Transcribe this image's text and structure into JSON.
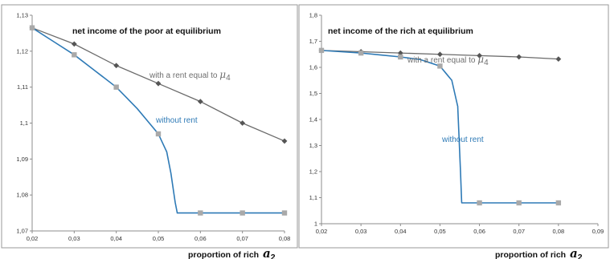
{
  "chart_data": [
    {
      "type": "line",
      "title": "net income of the poor at equilibrium",
      "xlabel": "proportion of rich",
      "xlabel_symbol": "a",
      "xlabel_subscript": "2",
      "x_ticks": [
        "0,02",
        "0,03",
        "0,04",
        "0,05",
        "0,06",
        "0,07",
        "0,08"
      ],
      "y_ticks": [
        "1,07",
        "1,08",
        "1,09",
        "1,1",
        "1,11",
        "1,12",
        "1,13"
      ],
      "xlim": [
        0.02,
        0.08
      ],
      "ylim": [
        1.07,
        1.13
      ],
      "series": [
        {
          "name": "with a rent equal to",
          "name_symbol": "μ",
          "name_subscript": "4",
          "color": "#6b6b6b",
          "marker": "diamond",
          "x": [
            0.02,
            0.03,
            0.04,
            0.05,
            0.06,
            0.07,
            0.08
          ],
          "y": [
            1.1265,
            1.122,
            1.116,
            1.111,
            1.106,
            1.1,
            1.095
          ]
        },
        {
          "name": "without rent",
          "color": "#2e7ab6",
          "marker": "square",
          "marker_color": "#a9a9a9",
          "x": [
            0.02,
            0.03,
            0.04,
            0.05,
            0.06,
            0.07,
            0.08
          ],
          "y": [
            1.1265,
            1.119,
            1.11,
            1.097,
            1.075,
            1.075,
            1.075
          ],
          "curve": [
            [
              0.02,
              1.1265
            ],
            [
              0.03,
              1.119
            ],
            [
              0.04,
              1.11
            ],
            [
              0.045,
              1.104
            ],
            [
              0.05,
              1.097
            ],
            [
              0.052,
              1.092
            ],
            [
              0.053,
              1.086
            ],
            [
              0.054,
              1.078
            ],
            [
              0.0545,
              1.075
            ],
            [
              0.08,
              1.075
            ]
          ]
        }
      ]
    },
    {
      "type": "line",
      "title": "net income of the rich at equilibrium",
      "xlabel": "proportion of rich",
      "xlabel_symbol": "a",
      "xlabel_subscript": "2",
      "x_ticks": [
        "0,02",
        "0,03",
        "0,04",
        "0,05",
        "0,06",
        "0,07",
        "0,08",
        "0,09"
      ],
      "y_ticks": [
        "1",
        "1,1",
        "1,2",
        "1,3",
        "1,4",
        "1,5",
        "1,6",
        "1,7",
        "1,8"
      ],
      "xlim": [
        0.02,
        0.09
      ],
      "ylim": [
        1.0,
        1.8
      ],
      "series": [
        {
          "name": "with a rent equal to",
          "name_symbol": "μ",
          "name_subscript": "4",
          "color": "#6b6b6b",
          "marker": "diamond",
          "x": [
            0.02,
            0.03,
            0.04,
            0.05,
            0.06,
            0.07,
            0.08
          ],
          "y": [
            1.665,
            1.66,
            1.655,
            1.65,
            1.645,
            1.64,
            1.632
          ]
        },
        {
          "name": "without rent",
          "color": "#2e7ab6",
          "marker": "square",
          "marker_color": "#a9a9a9",
          "x": [
            0.02,
            0.03,
            0.04,
            0.05,
            0.06,
            0.07,
            0.08
          ],
          "y": [
            1.665,
            1.655,
            1.64,
            1.605,
            1.08,
            1.08,
            1.08
          ],
          "curve": [
            [
              0.02,
              1.665
            ],
            [
              0.03,
              1.655
            ],
            [
              0.04,
              1.64
            ],
            [
              0.045,
              1.63
            ],
            [
              0.05,
              1.605
            ],
            [
              0.053,
              1.55
            ],
            [
              0.0545,
              1.45
            ],
            [
              0.0552,
              1.2
            ],
            [
              0.0555,
              1.08
            ],
            [
              0.08,
              1.08
            ]
          ]
        }
      ]
    }
  ]
}
